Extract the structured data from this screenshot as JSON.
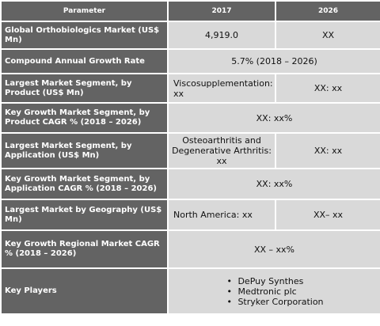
{
  "header": {
    "parameter": "Parameter",
    "y2017": "2017",
    "y2026": "2026"
  },
  "rows": [
    {
      "param": "Global Orthobiologics Market (US$ Mn)",
      "v2017": "4,919.0",
      "v2026": "XX"
    },
    {
      "param": "Compound Annual Growth Rate",
      "span": "5.7% (2018 – 2026)"
    },
    {
      "param": "Largest Market Segment, by Product (US$ Mn)",
      "v2017": "Viscosupplementation: xx",
      "v2026": "XX: xx"
    },
    {
      "param": "Key Growth Market Segment, by Product CAGR % (2018 – 2026)",
      "span": "XX: xx%"
    },
    {
      "param": "Largest Market Segment, by Application (US$ Mn)",
      "v2017": "Osteoarthritis and Degenerative Arthritis: xx",
      "v2026": "XX: xx"
    },
    {
      "param": "Key Growth Market Segment, by Application CAGR % (2018 – 2026)",
      "span": "XX: xx%"
    },
    {
      "param": "Largest Market by Geography (US$ Mn)",
      "v2017": "North America: xx",
      "v2026": "XX– xx"
    },
    {
      "param": "Key Growth Regional Market CAGR % (2018 – 2026)",
      "span": "XX – xx%"
    },
    {
      "param": "Key Players",
      "players": [
        "DePuy Synthes",
        "Medtronic plc",
        "Stryker Corporation"
      ]
    }
  ]
}
